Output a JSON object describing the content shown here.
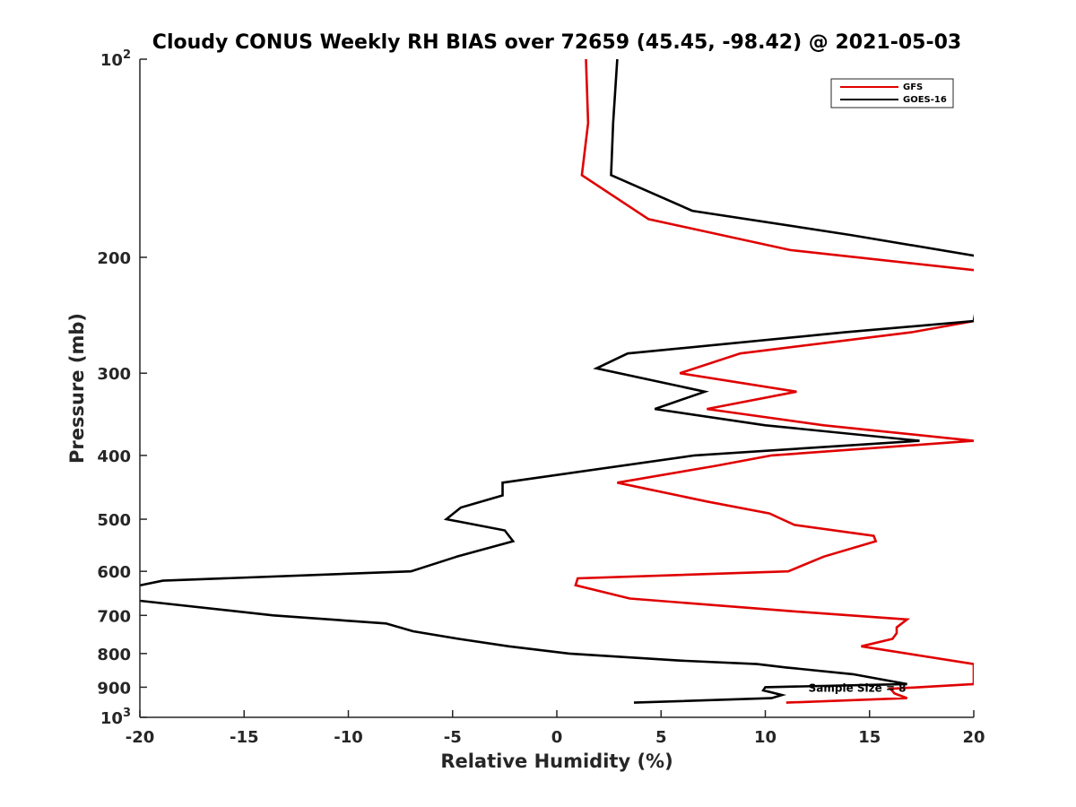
{
  "chart_data": {
    "type": "line",
    "title": "Cloudy CONUS Weekly RH BIAS over 72659 (45.45, -98.42) @ 2021-05-03",
    "xlabel": "Relative Humidity (%)",
    "ylabel": "Pressure (mb)",
    "xlim": [
      -20,
      20
    ],
    "ylim": [
      100,
      1000
    ],
    "y_scale": "log",
    "y_reversed": true,
    "grid": false,
    "legend_position": "top-right",
    "x_ticks": [
      {
        "value": -20,
        "label": "-20"
      },
      {
        "value": -15,
        "label": "-15"
      },
      {
        "value": -10,
        "label": "-10"
      },
      {
        "value": -5,
        "label": "-5"
      },
      {
        "value": 0,
        "label": "0"
      },
      {
        "value": 5,
        "label": "5"
      },
      {
        "value": 10,
        "label": "10"
      },
      {
        "value": 15,
        "label": "15"
      },
      {
        "value": 20,
        "label": "20"
      }
    ],
    "y_ticks": [
      {
        "value": 100,
        "base": "10",
        "exp": "2"
      },
      {
        "value": 200,
        "base": "200",
        "exp": ""
      },
      {
        "value": 300,
        "base": "300",
        "exp": ""
      },
      {
        "value": 400,
        "base": "400",
        "exp": ""
      },
      {
        "value": 500,
        "base": "500",
        "exp": ""
      },
      {
        "value": 600,
        "base": "600",
        "exp": ""
      },
      {
        "value": 700,
        "base": "700",
        "exp": ""
      },
      {
        "value": 800,
        "base": "800",
        "exp": ""
      },
      {
        "value": 900,
        "base": "900",
        "exp": ""
      },
      {
        "value": 1000,
        "base": "10",
        "exp": "3"
      }
    ],
    "series": [
      {
        "name": "GFS",
        "color": "#e00000",
        "points": [
          [
            1.4,
            100
          ],
          [
            1.5,
            125
          ],
          [
            1.2,
            150
          ],
          [
            4.4,
            175
          ],
          [
            11.2,
            195
          ],
          [
            20.5,
            210
          ],
          [
            20.0,
            250
          ],
          [
            17.0,
            260
          ],
          [
            8.8,
            280
          ],
          [
            5.9,
            300
          ],
          [
            11.5,
            320
          ],
          [
            7.2,
            340
          ],
          [
            12.8,
            360
          ],
          [
            20.0,
            380
          ],
          [
            10.3,
            400
          ],
          [
            7.6,
            415
          ],
          [
            2.9,
            440
          ],
          [
            7.2,
            470
          ],
          [
            10.2,
            490
          ],
          [
            11.4,
            510
          ],
          [
            15.2,
            530
          ],
          [
            15.3,
            540
          ],
          [
            12.8,
            570
          ],
          [
            11.1,
            600
          ],
          [
            1.0,
            615
          ],
          [
            0.9,
            630
          ],
          [
            3.5,
            660
          ],
          [
            11.3,
            690
          ],
          [
            16.8,
            710
          ],
          [
            16.3,
            730
          ],
          [
            16.3,
            745
          ],
          [
            16.1,
            760
          ],
          [
            14.6,
            780
          ],
          [
            20.0,
            830
          ],
          [
            20.0,
            890
          ],
          [
            16.0,
            905
          ],
          [
            16.2,
            920
          ],
          [
            16.8,
            935
          ],
          [
            11.0,
            950
          ]
        ]
      },
      {
        "name": "GOES-16",
        "color": "#000000",
        "points": [
          [
            2.9,
            100
          ],
          [
            2.7,
            125
          ],
          [
            2.6,
            150
          ],
          [
            6.5,
            170
          ],
          [
            14.1,
            185
          ],
          [
            20.5,
            200
          ],
          [
            20.0,
            250
          ],
          [
            13.8,
            260
          ],
          [
            3.4,
            280
          ],
          [
            1.9,
            295
          ],
          [
            7.1,
            320
          ],
          [
            4.7,
            340
          ],
          [
            10.0,
            360
          ],
          [
            17.4,
            380
          ],
          [
            6.6,
            400
          ],
          [
            -2.6,
            440
          ],
          [
            -2.6,
            460
          ],
          [
            -4.6,
            480
          ],
          [
            -5.3,
            500
          ],
          [
            -2.5,
            520
          ],
          [
            -2.1,
            540
          ],
          [
            -4.8,
            570
          ],
          [
            -7.0,
            600
          ],
          [
            -18.9,
            620
          ],
          [
            -20.5,
            635
          ],
          [
            -20.5,
            650
          ],
          [
            -20.0,
            665
          ],
          [
            -13.6,
            700
          ],
          [
            -8.2,
            720
          ],
          [
            -6.9,
            740
          ],
          [
            -4.7,
            760
          ],
          [
            -2.3,
            780
          ],
          [
            0.6,
            800
          ],
          [
            5.9,
            820
          ],
          [
            9.6,
            830
          ],
          [
            11.0,
            840
          ],
          [
            14.2,
            860
          ],
          [
            16.8,
            890
          ],
          [
            10.0,
            900
          ],
          [
            9.9,
            910
          ],
          [
            10.8,
            925
          ],
          [
            10.3,
            935
          ],
          [
            3.7,
            950
          ]
        ]
      }
    ],
    "annotation": {
      "text": "Sample Size = 8",
      "x": 12.5,
      "y": 900
    }
  }
}
